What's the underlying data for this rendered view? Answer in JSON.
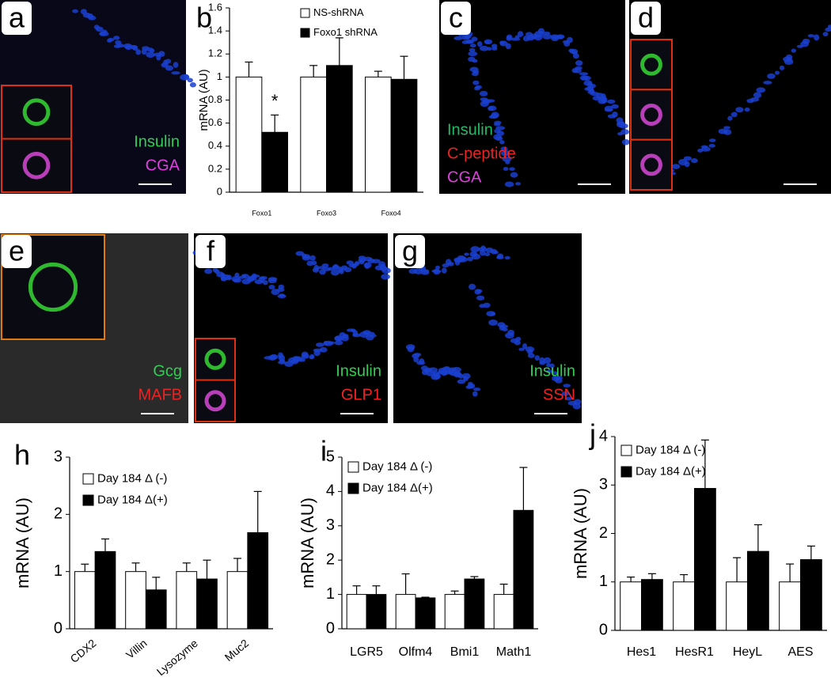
{
  "panels": [
    {
      "letter": "a",
      "labels": [
        {
          "text": "Insulin",
          "color": "#33cc55"
        },
        {
          "text": "CGA",
          "color": "#e040e0"
        }
      ]
    },
    {
      "letter": "c",
      "labels": [
        {
          "text": "Insulin",
          "color": "#22bb66"
        },
        {
          "text": "C-peptide",
          "color": "#ee2222"
        },
        {
          "text": "CGA",
          "color": "#e040e0"
        }
      ]
    },
    {
      "letter": "d",
      "labels": []
    },
    {
      "letter": "e",
      "labels": [
        {
          "text": "Gcg",
          "color": "#33cc55"
        },
        {
          "text": "MAFB",
          "color": "#ee2222"
        }
      ]
    },
    {
      "letter": "f",
      "labels": [
        {
          "text": "Insulin",
          "color": "#33cc55"
        },
        {
          "text": "GLP1",
          "color": "#ee2222"
        }
      ]
    },
    {
      "letter": "g",
      "labels": [
        {
          "text": "Insulin",
          "color": "#33cc55"
        },
        {
          "text": "SSN",
          "color": "#ee2222"
        }
      ]
    }
  ],
  "chart_data": [
    {
      "type": "bar",
      "panel": "b",
      "ylabel": "mRNA (AU)",
      "annotation": "*",
      "categories": [
        "Foxo1",
        "Foxo3",
        "Foxo4"
      ],
      "series": [
        {
          "name": "NS-shRNA",
          "color": "#ffffff",
          "values": [
            1,
            1,
            1
          ],
          "errors": [
            0.13,
            0.1,
            0.05
          ]
        },
        {
          "name": "Foxo1 shRNA",
          "color": "#000000",
          "values": [
            0.52,
            1.1,
            0.98
          ],
          "errors": [
            0.15,
            0.24,
            0.2
          ]
        }
      ],
      "ylim": [
        0,
        1.6
      ],
      "yticks": [
        0,
        0.2,
        0.4,
        0.6,
        0.8,
        1,
        1.2,
        1.4,
        1.6
      ]
    },
    {
      "type": "bar",
      "panel": "h",
      "ylabel": "mRNA (AU)",
      "categories": [
        "CDX2",
        "Villin",
        "Lysozyme",
        "Muc2"
      ],
      "series": [
        {
          "name": "Day 184 Δ (-)",
          "color": "#ffffff",
          "values": [
            1,
            1,
            1,
            1
          ],
          "errors": [
            0.13,
            0.15,
            0.15,
            0.23
          ]
        },
        {
          "name": "Day 184 Δ(+)",
          "color": "#000000",
          "values": [
            1.35,
            0.68,
            0.87,
            1.68
          ],
          "errors": [
            0.22,
            0.22,
            0.33,
            0.72
          ]
        }
      ],
      "ylim": [
        0,
        3
      ],
      "yticks": [
        0,
        1,
        2,
        3
      ]
    },
    {
      "type": "bar",
      "panel": "i",
      "ylabel": "mRNA (AU)",
      "categories": [
        "LGR5",
        "Olfm4",
        "Bmi1",
        "Math1"
      ],
      "series": [
        {
          "name": "Day 184 Δ (-)",
          "color": "#ffffff",
          "values": [
            1,
            1,
            1,
            1
          ],
          "errors": [
            0.25,
            0.6,
            0.1,
            0.3
          ]
        },
        {
          "name": "Day 184 Δ(+)",
          "color": "#000000",
          "values": [
            1,
            0.9,
            1.45,
            3.45
          ],
          "errors": [
            0.25,
            0.02,
            0.07,
            1.25
          ]
        }
      ],
      "ylim": [
        0,
        5
      ],
      "yticks": [
        0,
        1,
        2,
        3,
        4,
        5
      ]
    },
    {
      "type": "bar",
      "panel": "j",
      "ylabel": "mRNA (AU)",
      "categories": [
        "Hes1",
        "HesR1",
        "HeyL",
        "AES"
      ],
      "series": [
        {
          "name": "Day 184 Δ (-)",
          "color": "#ffffff",
          "values": [
            1,
            1,
            1,
            1
          ],
          "errors": [
            0.1,
            0.15,
            0.5,
            0.37
          ]
        },
        {
          "name": "Day 184 Δ(+)",
          "color": "#000000",
          "values": [
            1.05,
            2.93,
            1.63,
            1.46
          ],
          "errors": [
            0.12,
            1.0,
            0.55,
            0.28
          ]
        }
      ],
      "ylim": [
        0,
        4
      ],
      "yticks": [
        0,
        1,
        2,
        3,
        4
      ]
    }
  ]
}
